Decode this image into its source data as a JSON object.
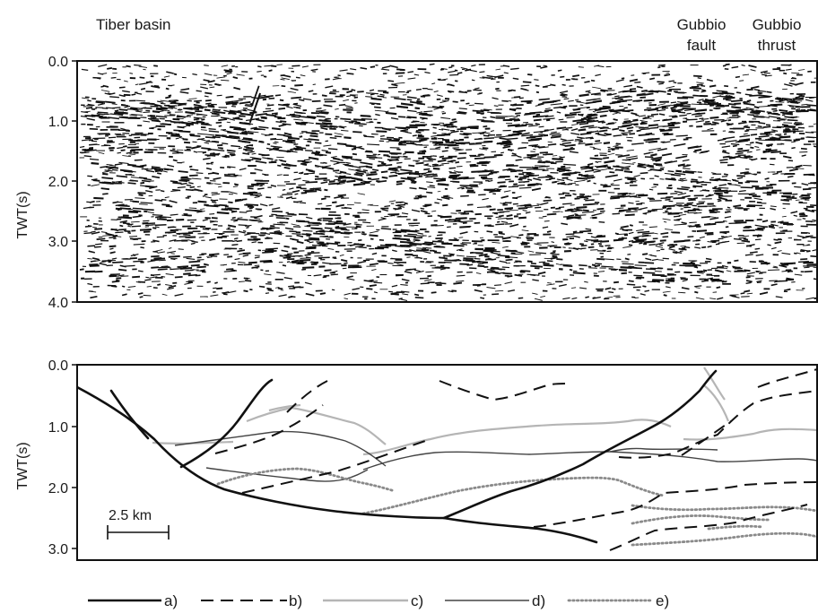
{
  "labels": {
    "left_top": "Tiber basin",
    "fault": [
      "Gubbio",
      "fault"
    ],
    "thrust": [
      "Gubbio",
      "thrust"
    ]
  },
  "top_panel": {
    "ylabel": "TWT(s)",
    "ticks": [
      "0.0",
      "1.0",
      "2.0",
      "3.0",
      "4.0"
    ]
  },
  "bottom_panel": {
    "ylabel": "TWT(s)",
    "ticks": [
      "0.0",
      "1.0",
      "2.0",
      "3.0"
    ],
    "scale_bar": "2.5 km"
  },
  "legend": [
    {
      "key": "a",
      "label": "a)",
      "style": "solid-thick",
      "color": "#111111"
    },
    {
      "key": "b",
      "label": "b)",
      "style": "dashed",
      "color": "#111111"
    },
    {
      "key": "c",
      "label": "c)",
      "style": "solid-light",
      "color": "#b5b5b5"
    },
    {
      "key": "d",
      "label": "d)",
      "style": "solid-thin",
      "color": "#444444"
    },
    {
      "key": "e",
      "label": "e)",
      "style": "dotted",
      "color": "#8a8a8a"
    }
  ]
}
